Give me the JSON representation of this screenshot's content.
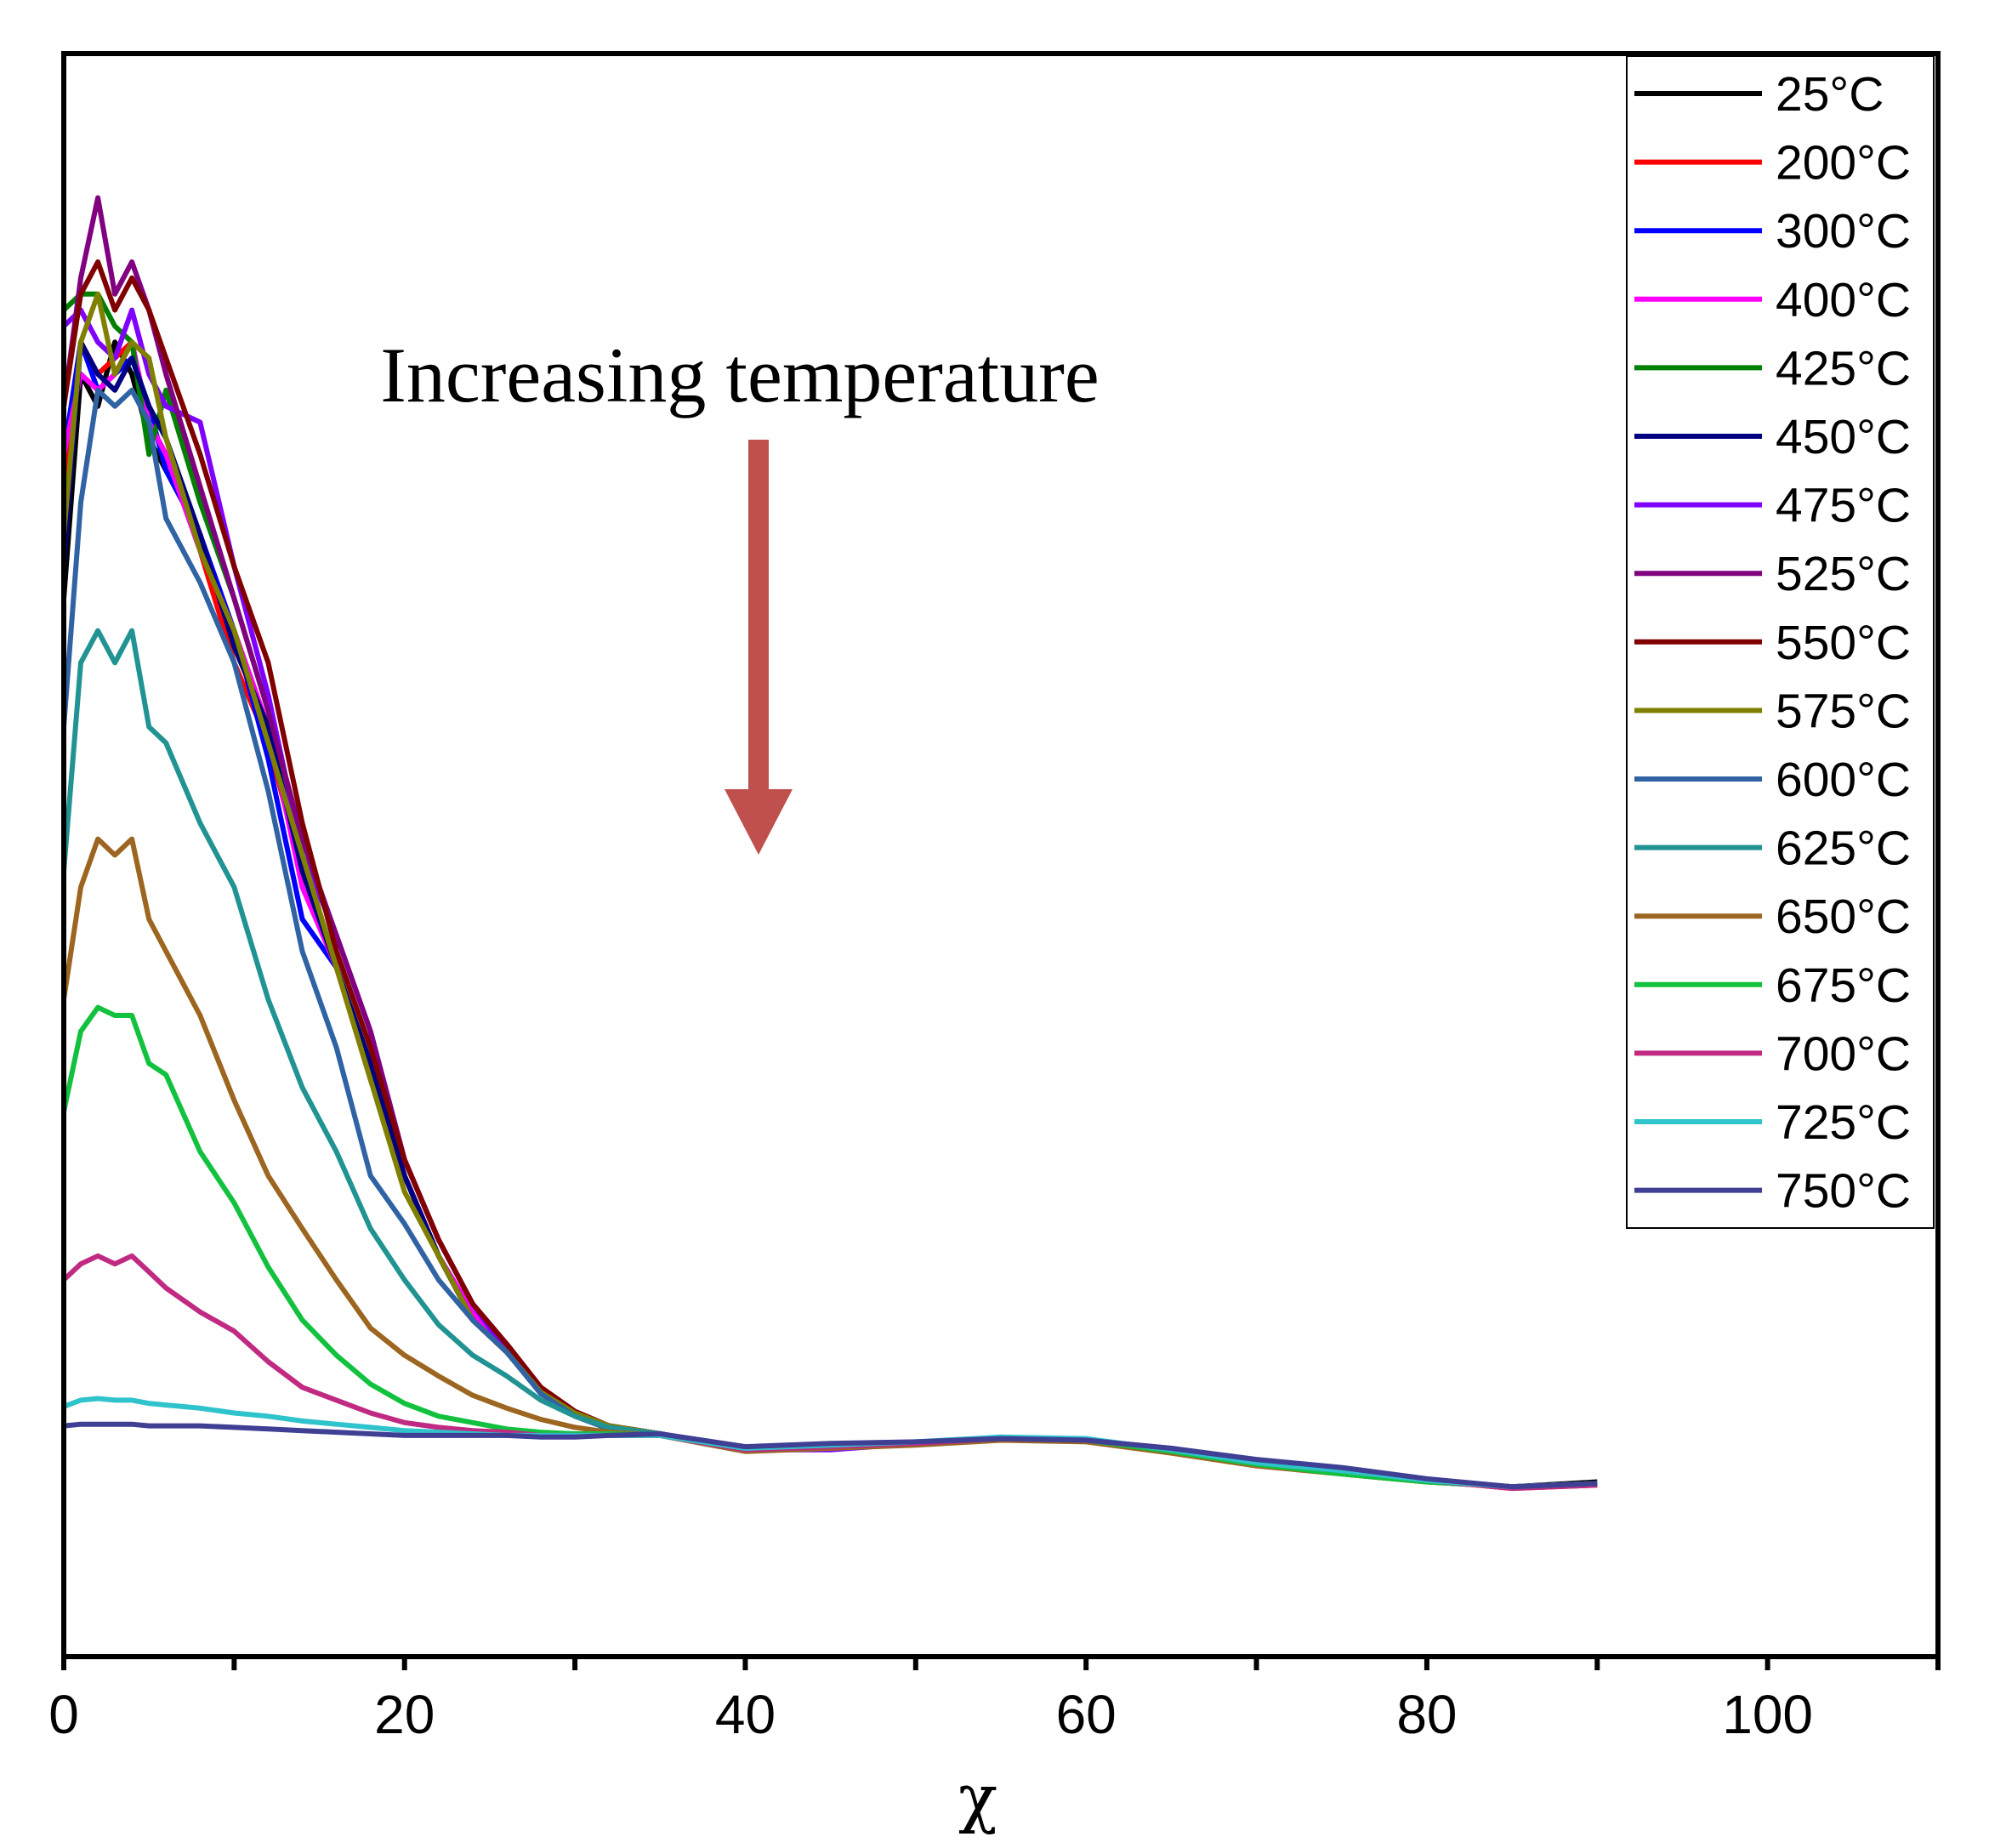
{
  "chart_data": {
    "type": "line",
    "title": "",
    "xlabel": "χ",
    "ylabel": "",
    "xlim": [
      0,
      110
    ],
    "ylim": [
      0,
      100
    ],
    "y_units": "arbitrary (no y tick labels shown)",
    "x_ticks": [
      0,
      20,
      40,
      60,
      80,
      100
    ],
    "x_tick_labels": [
      "0",
      "20",
      "40",
      "60",
      "80",
      "100"
    ],
    "x_minor_ticks": [
      10,
      30,
      50,
      70,
      90,
      110
    ],
    "grid": false,
    "legend_position": "top-right",
    "annotation": {
      "text": "Increasing temperature",
      "arrow": "down",
      "arrow_color": "#c0504d"
    },
    "x": [
      0,
      1,
      2,
      3,
      4,
      5,
      6,
      8,
      10,
      12,
      14,
      16,
      18,
      20,
      22,
      24,
      26,
      28,
      30,
      32,
      35,
      40,
      45,
      50,
      55,
      60,
      65,
      70,
      75,
      80,
      85,
      90
    ],
    "series": [
      {
        "name": "25°C",
        "color": "#000000",
        "values": [
          66,
          80,
          78,
          82,
          80,
          76,
          74,
          70,
          63,
          58,
          50,
          43,
          37,
          30,
          25,
          21,
          19,
          16.5,
          15.2,
          14.4,
          13.9,
          12.9,
          13.1,
          13.3,
          13.6,
          13.5,
          12.8,
          12.0,
          11.5,
          11.0,
          10.6,
          10.9
        ]
      },
      {
        "name": "200°C",
        "color": "#ff0000",
        "values": [
          72,
          82,
          80,
          81,
          82,
          77,
          75,
          69,
          62,
          57,
          49,
          43,
          36,
          30,
          25,
          21,
          19,
          16.5,
          15.2,
          14.4,
          13.9,
          12.9,
          13.1,
          13.3,
          13.6,
          13.5,
          12.9,
          12.1,
          11.5,
          11.0,
          10.5,
          10.7
        ]
      },
      {
        "name": "300°C",
        "color": "#0000ff",
        "values": [
          75,
          82,
          79,
          80,
          81,
          78,
          74,
          70,
          64,
          56,
          46,
          43,
          37,
          30,
          25,
          21,
          19,
          16.5,
          15.2,
          14.4,
          13.9,
          12.9,
          13.1,
          13.3,
          13.6,
          13.5,
          12.8,
          12.0,
          11.5,
          11.0,
          10.6,
          10.8
        ]
      },
      {
        "name": "400°C",
        "color": "#ff00ff",
        "values": [
          75,
          80,
          79,
          80,
          82,
          77,
          75,
          69,
          64,
          58,
          48,
          43,
          37,
          30,
          25,
          21.5,
          19,
          16.5,
          15.2,
          14.4,
          13.9,
          12.9,
          13.0,
          13.3,
          13.6,
          13.5,
          12.8,
          12.0,
          11.5,
          11.0,
          10.6,
          10.8
        ]
      },
      {
        "name": "425°C",
        "color": "#008000",
        "values": [
          84,
          85,
          85,
          83,
          82,
          75,
          79,
          72,
          66,
          59,
          49,
          43,
          37,
          30,
          25,
          21,
          19,
          16.5,
          15.2,
          14.4,
          13.9,
          12.9,
          13.1,
          13.3,
          13.6,
          13.5,
          12.8,
          12.0,
          11.4,
          10.9,
          10.6,
          10.8
        ]
      },
      {
        "name": "450°C",
        "color": "#000080",
        "values": [
          68,
          82,
          80,
          79,
          81,
          78,
          76,
          70,
          63,
          58,
          49,
          43,
          37,
          30,
          25,
          21,
          19,
          16.5,
          15.2,
          14.4,
          13.9,
          12.9,
          13.1,
          13.3,
          13.6,
          13.5,
          12.8,
          12.0,
          11.5,
          11.0,
          10.6,
          10.8
        ]
      },
      {
        "name": "475°C",
        "color": "#8000ff",
        "values": [
          83,
          84,
          82,
          81,
          84,
          80,
          78,
          77,
          68,
          60,
          50,
          45,
          39,
          31,
          26,
          22,
          19,
          16.5,
          15.2,
          14.4,
          13.9,
          12.9,
          12.9,
          13.3,
          13.6,
          13.5,
          12.8,
          12.0,
          11.5,
          11.0,
          10.6,
          10.8
        ]
      },
      {
        "name": "525°C",
        "color": "#800080",
        "values": [
          78,
          86,
          91,
          85,
          87,
          84,
          80,
          73,
          66,
          59,
          51,
          45,
          39,
          31,
          26,
          22,
          19.5,
          16.8,
          15.3,
          14.4,
          13.9,
          12.9,
          13.1,
          13.3,
          13.6,
          13.5,
          12.9,
          12.1,
          11.6,
          11.0,
          10.6,
          10.8
        ]
      },
      {
        "name": "550°C",
        "color": "#800000",
        "values": [
          78,
          85,
          87,
          84,
          86,
          84,
          81,
          75,
          68,
          62,
          52,
          44,
          38,
          31,
          26,
          22,
          19.5,
          16.8,
          15.3,
          14.4,
          13.9,
          12.9,
          13.1,
          13.3,
          13.6,
          13.5,
          12.8,
          12.0,
          11.5,
          11.0,
          10.6,
          10.8
        ]
      },
      {
        "name": "575°C",
        "color": "#808000",
        "values": [
          70,
          82,
          85,
          80,
          82,
          81,
          76,
          69,
          64,
          57,
          50,
          43,
          36,
          29,
          25,
          21,
          19,
          16.5,
          15.2,
          14.4,
          13.9,
          12.9,
          13.1,
          13.3,
          13.6,
          13.5,
          12.8,
          12.0,
          11.5,
          11.0,
          10.6,
          10.8
        ]
      },
      {
        "name": "600°C",
        "color": "#3063a3",
        "values": [
          58,
          72,
          79,
          78,
          79,
          77,
          71,
          67,
          62,
          54,
          44,
          38,
          30,
          27,
          23.5,
          21,
          19,
          16.4,
          15,
          14.2,
          13.9,
          12.9,
          13.1,
          13.3,
          13.6,
          13.5,
          12.8,
          12.0,
          11.5,
          11.0,
          10.6,
          10.8
        ]
      },
      {
        "name": "625°C",
        "color": "#219393",
        "values": [
          49,
          62,
          64,
          62,
          64,
          58,
          57,
          52,
          48,
          41,
          35.5,
          31.5,
          26.7,
          23.5,
          20.7,
          18.8,
          17.5,
          16,
          15,
          14.3,
          13.9,
          12.9,
          13.1,
          13.3,
          13.6,
          13.5,
          12.8,
          12.0,
          11.5,
          11.0,
          10.6,
          10.8
        ]
      },
      {
        "name": "650°C",
        "color": "#9c6520",
        "values": [
          41,
          48,
          51,
          50,
          51,
          46,
          44,
          40,
          34.7,
          30,
          26.7,
          23.5,
          20.5,
          18.8,
          17.5,
          16.3,
          15.5,
          14.8,
          14.3,
          14,
          13.8,
          12.8,
          13.0,
          13.2,
          13.5,
          13.4,
          12.7,
          11.9,
          11.4,
          10.9,
          10.6,
          10.8
        ]
      },
      {
        "name": "675°C",
        "color": "#12c23f",
        "values": [
          34,
          39,
          40.5,
          40,
          40,
          37,
          36.3,
          31.5,
          28.3,
          24.3,
          21,
          18.8,
          17,
          15.8,
          15,
          14.6,
          14.2,
          14,
          13.9,
          13.9,
          13.8,
          12.9,
          13.1,
          13.3,
          13.6,
          13.5,
          12.8,
          12.0,
          11.4,
          10.9,
          10.6,
          10.8
        ]
      },
      {
        "name": "700°C",
        "color": "#c02a82",
        "values": [
          23.5,
          24.5,
          25,
          24.5,
          25,
          24,
          23,
          21.5,
          20.3,
          18.4,
          16.8,
          16,
          15.2,
          14.6,
          14.3,
          14.1,
          14,
          13.8,
          13.8,
          13.8,
          13.8,
          12.9,
          13.1,
          13.3,
          13.6,
          13.5,
          13.0,
          12.2,
          11.7,
          11.0,
          10.5,
          10.7
        ]
      },
      {
        "name": "725°C",
        "color": "#2fc3cc",
        "values": [
          15.6,
          16,
          16.1,
          16,
          16,
          15.8,
          15.7,
          15.5,
          15.2,
          15,
          14.7,
          14.5,
          14.3,
          14.1,
          14,
          13.9,
          13.8,
          13.8,
          13.8,
          13.8,
          13.8,
          13.0,
          13.2,
          13.4,
          13.7,
          13.6,
          12.9,
          12.1,
          11.6,
          11.0,
          10.6,
          10.8
        ]
      },
      {
        "name": "750°C",
        "color": "#3f3f94",
        "values": [
          14.4,
          14.5,
          14.5,
          14.5,
          14.5,
          14.4,
          14.4,
          14.4,
          14.3,
          14.2,
          14.1,
          14,
          13.9,
          13.8,
          13.8,
          13.8,
          13.8,
          13.7,
          13.7,
          13.8,
          13.9,
          13.1,
          13.3,
          13.4,
          13.6,
          13.5,
          13.0,
          12.3,
          11.8,
          11.1,
          10.6,
          10.8
        ]
      }
    ]
  }
}
